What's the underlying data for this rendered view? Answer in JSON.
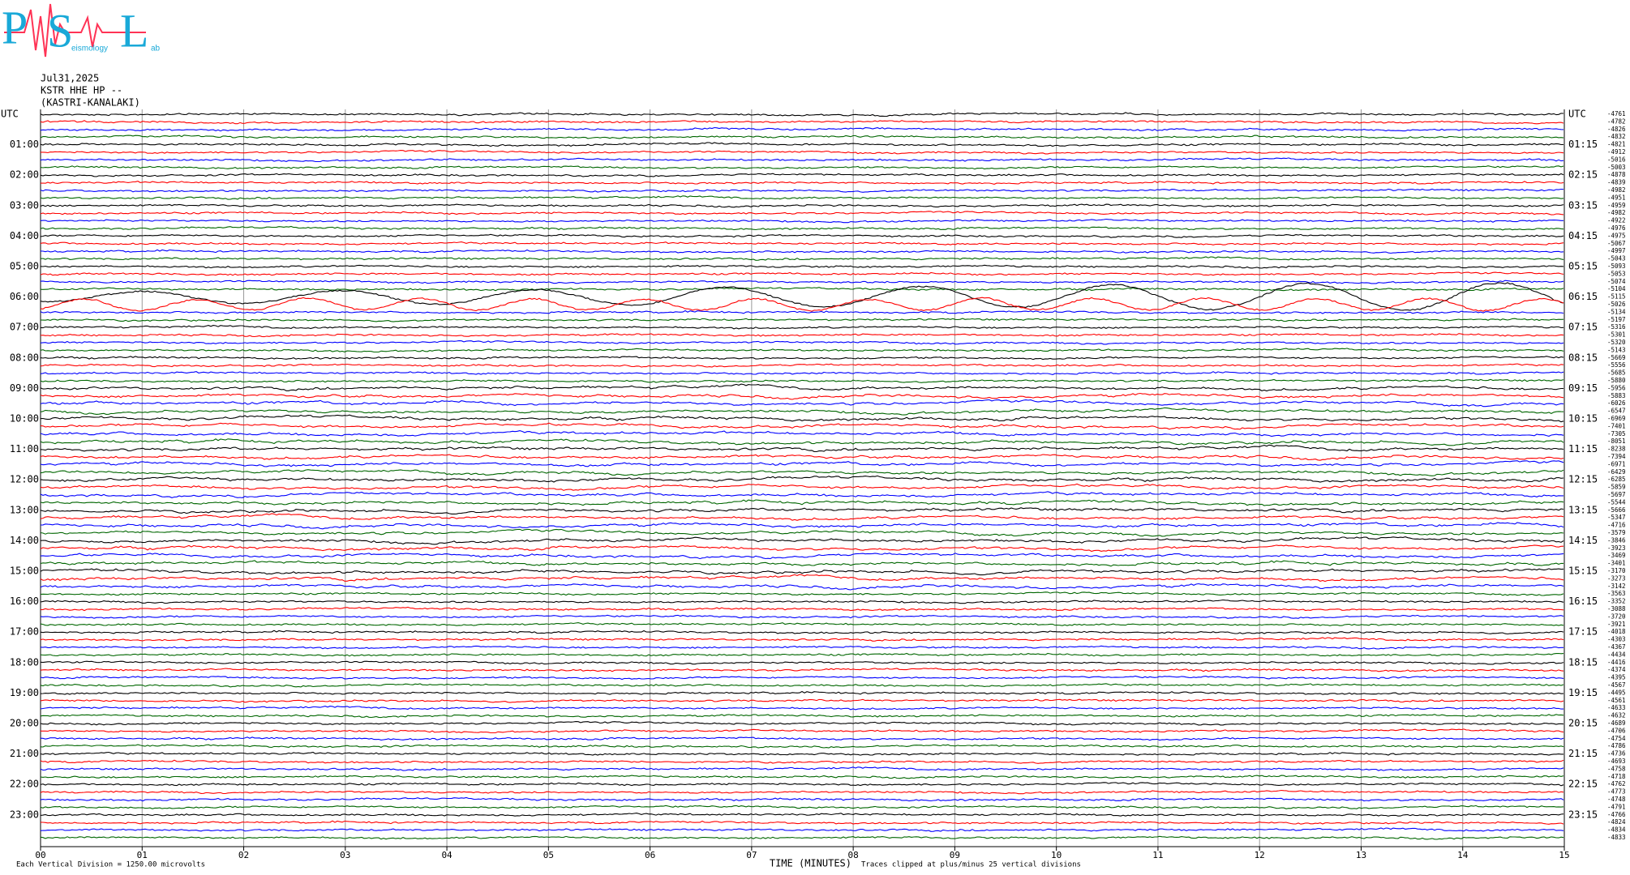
{
  "chart_data": {
    "type": "helicorder",
    "logo": {
      "letters": [
        "P",
        "S",
        "L"
      ],
      "small": [
        "eismology",
        "ab"
      ]
    },
    "title": [
      "Jul31,2025",
      "KSTR HHE HP --",
      "(KASTRI-KANALAKI)"
    ],
    "left_labels": [
      "UTC",
      "01:00",
      "02:00",
      "03:00",
      "04:00",
      "05:00",
      "06:00",
      "07:00",
      "08:00",
      "09:00",
      "10:00",
      "11:00",
      "12:00",
      "13:00",
      "14:00",
      "15:00",
      "16:00",
      "17:00",
      "18:00",
      "19:00",
      "20:00",
      "21:00",
      "22:00",
      "23:00"
    ],
    "right_labels": [
      "UTC",
      "01:15",
      "02:15",
      "03:15",
      "04:15",
      "05:15",
      "06:15",
      "07:15",
      "08:15",
      "09:15",
      "10:15",
      "11:15",
      "12:15",
      "13:15",
      "14:15",
      "15:15",
      "16:15",
      "17:15",
      "18:15",
      "19:15",
      "20:15",
      "21:15",
      "22:15",
      "23:15"
    ],
    "row_offsets": [
      -4761,
      -4782,
      -4826,
      -4832,
      -4821,
      -4912,
      -5016,
      -5003,
      -4878,
      -4839,
      -4982,
      -4951,
      -4959,
      -4982,
      -4922,
      -4976,
      -4975,
      -5067,
      -4997,
      -5043,
      -5093,
      -5053,
      -5074,
      -5104,
      -5115,
      -5026,
      -5134,
      -5197,
      -5316,
      -5301,
      -5320,
      -5143,
      -5669,
      -5556,
      -5685,
      -5880,
      -5956,
      -5883,
      -6026,
      -6547,
      -6969,
      -7401,
      -7305,
      -8051,
      -8238,
      -7394,
      -6971,
      -6429,
      -6285,
      -5859,
      -5697,
      -5544,
      -5666,
      -5347,
      -4716,
      -3579,
      -3846,
      -3923,
      -3469,
      -3401,
      -3170,
      -3273,
      -3142,
      -3563,
      -3352,
      -3088,
      -3720,
      -3921,
      -4018,
      -4303,
      -4367,
      -4434,
      -4416,
      -4374,
      -4395,
      -4567,
      -4495,
      -4561,
      -4633,
      -4632,
      -4689,
      -4706,
      -4754,
      -4786,
      -4736,
      -4693,
      -4758,
      -4718,
      -4762,
      -4773,
      -4748,
      -4791,
      -4766,
      -4824,
      -4834,
      -4833
    ],
    "trace_colors": [
      "#000000",
      "#ff0000",
      "#0000ff",
      "#006600"
    ],
    "xlim": [
      0,
      15
    ],
    "xticks": [
      {
        "value": 0,
        "label": "00"
      },
      {
        "value": 1,
        "label": "01"
      },
      {
        "value": 2,
        "label": "02"
      },
      {
        "value": 3,
        "label": "03"
      },
      {
        "value": 4,
        "label": "04"
      },
      {
        "value": 5,
        "label": "05"
      },
      {
        "value": 6,
        "label": "06"
      },
      {
        "value": 7,
        "label": "07"
      },
      {
        "value": 8,
        "label": "08"
      },
      {
        "value": 9,
        "label": "09"
      },
      {
        "value": 10,
        "label": "10"
      },
      {
        "value": 11,
        "label": "11"
      },
      {
        "value": 12,
        "label": "12"
      },
      {
        "value": 13,
        "label": "13"
      },
      {
        "value": 14,
        "label": "14"
      },
      {
        "value": 15,
        "label": "15"
      }
    ],
    "x_label": "TIME (MINUTES)",
    "footer_left": "Each Vertical Division = 1250.00 microvolts",
    "footer_right": "Traces clipped at plus/minus 25 vertical divisions",
    "grid": true
  }
}
